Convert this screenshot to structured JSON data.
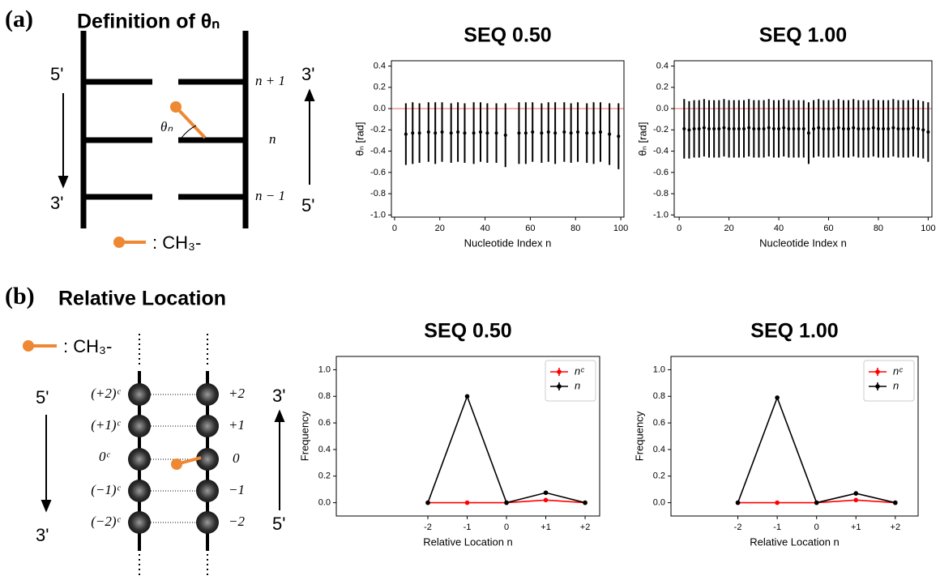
{
  "panel_a": {
    "label": "(a)",
    "title": "Definition of θₙ",
    "left_top": "5'",
    "left_bottom": "3'",
    "right_top": "3'",
    "right_bottom": "5'",
    "rungs": [
      "n + 1",
      "n",
      "n − 1"
    ],
    "angle": "θₙ",
    "legend": ": CH₃-"
  },
  "panel_b": {
    "label": "(b)",
    "title": "Relative Location",
    "legend": ": CH₃-",
    "left_top": "5'",
    "left_bottom": "3'",
    "right_top": "3'",
    "right_bottom": "5'",
    "left_labels": [
      "(+2)ᶜ",
      "(+1)ᶜ",
      "0ᶜ",
      "(−1)ᶜ",
      "(−2)ᶜ"
    ],
    "right_labels": [
      "+2",
      "+1",
      "0",
      "−1",
      "−2"
    ]
  },
  "chart_data": [
    {
      "type": "errorbar",
      "title": "SEQ 0.50",
      "xlabel": "Nucleotide Index n",
      "ylabel": "θₙ [rad]",
      "color": "#000000",
      "hline": 0,
      "hline_color": "#f07070",
      "x": [
        5,
        8,
        11,
        15,
        18,
        21,
        25,
        28,
        31,
        35,
        38,
        41,
        45,
        49,
        55,
        58,
        61,
        65,
        68,
        71,
        75,
        78,
        81,
        85,
        88,
        91,
        95,
        99
      ],
      "values": [
        -0.24,
        -0.23,
        -0.23,
        -0.22,
        -0.23,
        -0.22,
        -0.23,
        -0.22,
        -0.23,
        -0.23,
        -0.22,
        -0.23,
        -0.23,
        -0.25,
        -0.23,
        -0.23,
        -0.22,
        -0.23,
        -0.22,
        -0.23,
        -0.22,
        -0.23,
        -0.22,
        -0.23,
        -0.23,
        -0.22,
        -0.24,
        -0.26
      ],
      "errors": [
        0.29,
        0.29,
        0.28,
        0.28,
        0.29,
        0.28,
        0.28,
        0.28,
        0.28,
        0.29,
        0.28,
        0.28,
        0.28,
        0.3,
        0.29,
        0.29,
        0.28,
        0.28,
        0.28,
        0.29,
        0.28,
        0.28,
        0.28,
        0.28,
        0.29,
        0.28,
        0.29,
        0.31
      ],
      "xlim": [
        -1.4,
        101.4
      ],
      "ylim": [
        -1.02,
        0.45
      ],
      "xticks": [
        0,
        20,
        40,
        60,
        80,
        100
      ],
      "yticks": [
        {
          "value": -1.0,
          "label": "-1.0"
        },
        -0.8,
        -0.6,
        -0.4,
        -0.2,
        {
          "value": 0,
          "label": "0.0"
        },
        0.2,
        0.4
      ]
    },
    {
      "type": "errorbar",
      "title": "SEQ 1.00",
      "xlabel": "Nucleotide Index n",
      "ylabel": "θₙ [rad]",
      "color": "#000000",
      "hline": 0,
      "hline_color": "#f07070",
      "x": [
        2,
        4,
        6,
        8,
        10,
        12,
        14,
        16,
        18,
        20,
        22,
        24,
        26,
        28,
        30,
        32,
        34,
        36,
        38,
        40,
        42,
        44,
        46,
        48,
        50,
        52,
        54,
        56,
        58,
        60,
        62,
        64,
        66,
        68,
        70,
        72,
        74,
        76,
        78,
        80,
        82,
        84,
        86,
        88,
        90,
        92,
        94,
        96,
        98,
        100
      ],
      "values": [
        -0.19,
        -0.2,
        -0.19,
        -0.19,
        -0.18,
        -0.19,
        -0.19,
        -0.19,
        -0.18,
        -0.19,
        -0.19,
        -0.19,
        -0.19,
        -0.18,
        -0.19,
        -0.19,
        -0.19,
        -0.18,
        -0.19,
        -0.19,
        -0.18,
        -0.19,
        -0.19,
        -0.19,
        -0.19,
        -0.23,
        -0.19,
        -0.18,
        -0.19,
        -0.19,
        -0.19,
        -0.18,
        -0.19,
        -0.19,
        -0.18,
        -0.19,
        -0.19,
        -0.19,
        -0.18,
        -0.19,
        -0.19,
        -0.19,
        -0.18,
        -0.19,
        -0.19,
        -0.19,
        -0.18,
        -0.19,
        -0.2,
        -0.22
      ],
      "errors": [
        0.28,
        0.27,
        0.27,
        0.27,
        0.27,
        0.27,
        0.27,
        0.27,
        0.27,
        0.27,
        0.27,
        0.27,
        0.27,
        0.27,
        0.27,
        0.27,
        0.27,
        0.27,
        0.27,
        0.27,
        0.27,
        0.27,
        0.27,
        0.27,
        0.27,
        0.29,
        0.27,
        0.27,
        0.27,
        0.27,
        0.27,
        0.27,
        0.27,
        0.27,
        0.27,
        0.27,
        0.27,
        0.27,
        0.27,
        0.27,
        0.27,
        0.27,
        0.27,
        0.27,
        0.27,
        0.27,
        0.27,
        0.27,
        0.27,
        0.28
      ],
      "xlim": [
        -2,
        101.5
      ],
      "ylim": [
        -1.02,
        0.45
      ],
      "xticks": [
        0,
        20,
        40,
        60,
        80,
        100
      ],
      "yticks": [
        {
          "value": -1.0,
          "label": "-1.0"
        },
        -0.8,
        -0.6,
        -0.4,
        -0.2,
        {
          "value": 0,
          "label": "0.0"
        },
        0.2,
        0.4
      ]
    },
    {
      "type": "line",
      "title": "SEQ 0.50",
      "xlabel": "Relative Location n",
      "ylabel": "Frequency",
      "legend": "upper right",
      "x": [
        -2,
        -1,
        0,
        1,
        2
      ],
      "series": [
        {
          "name": "nᶜ",
          "color": "#ff0000",
          "values": [
            0,
            0,
            0,
            0.02,
            0
          ]
        },
        {
          "name": "n",
          "color": "#000000",
          "values": [
            0,
            0.8,
            0,
            0.075,
            0
          ]
        }
      ],
      "xlim": [
        -4.33,
        2.37
      ],
      "ylim": [
        -0.1,
        1.1
      ],
      "xticks": [
        -2,
        -1,
        0,
        {
          "value": 1,
          "label": "+1"
        },
        {
          "value": 2,
          "label": "+2"
        }
      ],
      "yticks": [
        {
          "value": 0,
          "label": "0.0"
        },
        0.2,
        0.4,
        0.6,
        0.8,
        {
          "value": 1,
          "label": "1.0"
        }
      ]
    },
    {
      "type": "line",
      "title": "SEQ 1.00",
      "xlabel": "Relative Location n",
      "ylabel": "Frequency",
      "legend": "upper right",
      "x": [
        -2,
        -1,
        0,
        1,
        2
      ],
      "series": [
        {
          "name": "nᶜ",
          "color": "#ff0000",
          "values": [
            0,
            0,
            0,
            0.02,
            0
          ]
        },
        {
          "name": "n",
          "color": "#000000",
          "values": [
            0,
            0.79,
            0,
            0.07,
            0
          ]
        }
      ],
      "xlim": [
        -3.7,
        2.58
      ],
      "ylim": [
        -0.1,
        1.1
      ],
      "xticks": [
        -2,
        -1,
        0,
        {
          "value": 1,
          "label": "+1"
        },
        {
          "value": 2,
          "label": "+2"
        }
      ],
      "yticks": [
        {
          "value": 0,
          "label": "0.0"
        },
        0.2,
        0.4,
        0.6,
        0.8,
        {
          "value": 1,
          "label": "1.0"
        }
      ]
    }
  ]
}
